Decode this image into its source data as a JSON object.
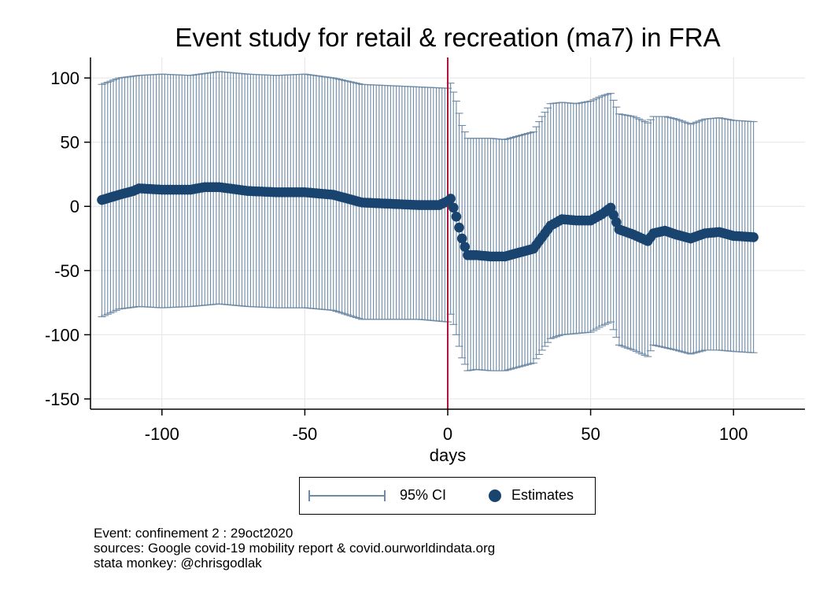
{
  "chart_data": {
    "type": "scatter",
    "title": "Event study for retail & recreation (ma7) in FRA",
    "xlabel": "days",
    "ylabel": "",
    "xlim": [
      -125,
      125
    ],
    "ylim": [
      -158,
      116
    ],
    "xticks": [
      -100,
      -50,
      0,
      50,
      100
    ],
    "yticks": [
      100,
      50,
      0,
      -50,
      -100,
      -150
    ],
    "xtick_labels": [
      "-100",
      "-50",
      "0",
      "50",
      "100"
    ],
    "ytick_labels": [
      "100",
      "50",
      "0",
      "-50",
      "-100",
      "-150"
    ],
    "grid": true,
    "legend_position": "bottom",
    "event_line_x": 0,
    "series": [
      {
        "name": "95% CI",
        "kind": "errorbar",
        "color": "#6d8aa6",
        "knots": [
          {
            "x": -121,
            "low": -86,
            "high": 95
          },
          {
            "x": -115,
            "low": -80,
            "high": 100
          },
          {
            "x": -108,
            "low": -78,
            "high": 102
          },
          {
            "x": -100,
            "low": -79,
            "high": 103
          },
          {
            "x": -90,
            "low": -78,
            "high": 102
          },
          {
            "x": -80,
            "low": -76,
            "high": 105
          },
          {
            "x": -70,
            "low": -78,
            "high": 103
          },
          {
            "x": -60,
            "low": -79,
            "high": 102
          },
          {
            "x": -50,
            "low": -79,
            "high": 103
          },
          {
            "x": -40,
            "low": -81,
            "high": 100
          },
          {
            "x": -30,
            "low": -88,
            "high": 95
          },
          {
            "x": -20,
            "low": -88,
            "high": 94
          },
          {
            "x": -10,
            "low": -88,
            "high": 93
          },
          {
            "x": 0,
            "low": -90,
            "high": 92
          },
          {
            "x": 1,
            "low": -84,
            "high": 96
          },
          {
            "x": 3,
            "low": -100,
            "high": 82
          },
          {
            "x": 5,
            "low": -118,
            "high": 63
          },
          {
            "x": 7,
            "low": -128,
            "high": 53
          },
          {
            "x": 10,
            "low": -127,
            "high": 53
          },
          {
            "x": 15,
            "low": -128,
            "high": 53
          },
          {
            "x": 20,
            "low": -128,
            "high": 52
          },
          {
            "x": 25,
            "low": -125,
            "high": 55
          },
          {
            "x": 30,
            "low": -122,
            "high": 58
          },
          {
            "x": 33,
            "low": -112,
            "high": 70
          },
          {
            "x": 36,
            "low": -103,
            "high": 80
          },
          {
            "x": 40,
            "low": -100,
            "high": 81
          },
          {
            "x": 45,
            "low": -99,
            "high": 80
          },
          {
            "x": 50,
            "low": -98,
            "high": 82
          },
          {
            "x": 54,
            "low": -93,
            "high": 86
          },
          {
            "x": 57,
            "low": -90,
            "high": 88
          },
          {
            "x": 60,
            "low": -108,
            "high": 72
          },
          {
            "x": 65,
            "low": -112,
            "high": 70
          },
          {
            "x": 70,
            "low": -117,
            "high": 65
          },
          {
            "x": 72,
            "low": -108,
            "high": 70
          },
          {
            "x": 76,
            "low": -110,
            "high": 70
          },
          {
            "x": 80,
            "low": -112,
            "high": 68
          },
          {
            "x": 85,
            "low": -115,
            "high": 64
          },
          {
            "x": 90,
            "low": -112,
            "high": 68
          },
          {
            "x": 95,
            "low": -112,
            "high": 69
          },
          {
            "x": 100,
            "low": -113,
            "high": 67
          },
          {
            "x": 107,
            "low": -114,
            "high": 66
          }
        ]
      },
      {
        "name": "Estimates",
        "kind": "point",
        "color": "#1a4470",
        "knots": [
          {
            "x": -121,
            "y": 5
          },
          {
            "x": -115,
            "y": 9
          },
          {
            "x": -110,
            "y": 12
          },
          {
            "x": -108,
            "y": 14
          },
          {
            "x": -100,
            "y": 13
          },
          {
            "x": -90,
            "y": 13
          },
          {
            "x": -85,
            "y": 15
          },
          {
            "x": -80,
            "y": 15
          },
          {
            "x": -70,
            "y": 12
          },
          {
            "x": -60,
            "y": 11
          },
          {
            "x": -50,
            "y": 11
          },
          {
            "x": -40,
            "y": 9
          },
          {
            "x": -30,
            "y": 3
          },
          {
            "x": -20,
            "y": 2
          },
          {
            "x": -10,
            "y": 1
          },
          {
            "x": -3,
            "y": 1
          },
          {
            "x": 0,
            "y": 4
          },
          {
            "x": 1,
            "y": 6
          },
          {
            "x": 3,
            "y": -8
          },
          {
            "x": 5,
            "y": -25
          },
          {
            "x": 7,
            "y": -38
          },
          {
            "x": 10,
            "y": -38
          },
          {
            "x": 15,
            "y": -39
          },
          {
            "x": 20,
            "y": -39
          },
          {
            "x": 25,
            "y": -36
          },
          {
            "x": 30,
            "y": -33
          },
          {
            "x": 33,
            "y": -24
          },
          {
            "x": 36,
            "y": -15
          },
          {
            "x": 40,
            "y": -10
          },
          {
            "x": 45,
            "y": -11
          },
          {
            "x": 50,
            "y": -11
          },
          {
            "x": 54,
            "y": -6
          },
          {
            "x": 57,
            "y": -1
          },
          {
            "x": 60,
            "y": -18
          },
          {
            "x": 65,
            "y": -22
          },
          {
            "x": 70,
            "y": -27
          },
          {
            "x": 72,
            "y": -21
          },
          {
            "x": 76,
            "y": -19
          },
          {
            "x": 80,
            "y": -22
          },
          {
            "x": 85,
            "y": -25
          },
          {
            "x": 90,
            "y": -21
          },
          {
            "x": 95,
            "y": -20
          },
          {
            "x": 100,
            "y": -23
          },
          {
            "x": 107,
            "y": -24
          }
        ]
      }
    ],
    "x_range_days": [
      -121,
      107
    ]
  },
  "legend": {
    "ci_label": "95% CI",
    "est_label": "Estimates"
  },
  "notes": {
    "line1": "Event: confinement 2 : 29oct2020",
    "line2": "sources: Google covid-19 mobility report & covid.ourworldindata.org",
    "line3": "stata monkey: @chrisgodlak"
  },
  "colors": {
    "ci": "#6d8aa6",
    "estimate": "#1a4470",
    "event_line": "#b5133a",
    "grid": "#e8e8e8"
  }
}
